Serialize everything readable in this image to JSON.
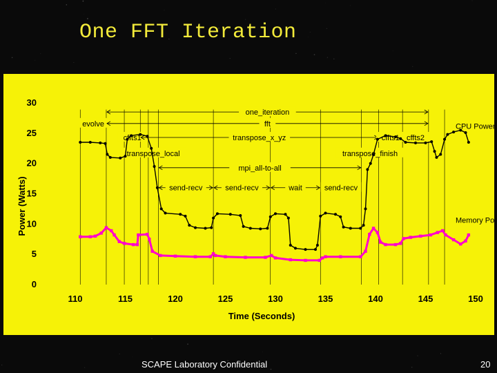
{
  "slide": {
    "title": "One FFT Iteration",
    "footer": "SCAPE Laboratory Confidential",
    "page_number": "20"
  },
  "colors": {
    "slide_background": "#0a0a0a",
    "title": "#f2ea3a",
    "panel": "#f6f207",
    "cpu_series": "#000000",
    "memory_series": "#ff00cc"
  },
  "chart_data": {
    "type": "line",
    "title": "",
    "xlabel": "Time (Seconds)",
    "ylabel": "Power (Watts)",
    "xlim": [
      110,
      150
    ],
    "ylim": [
      0,
      30
    ],
    "x_ticks": [
      "110",
      "115",
      "120",
      "125",
      "130",
      "135",
      "140",
      "145",
      "150"
    ],
    "y_ticks": [
      "0",
      "5",
      "10",
      "15",
      "20",
      "25",
      "30"
    ],
    "grid": false,
    "series": [
      {
        "name": "CPU Power",
        "points": [
          [
            110.5,
            23.5
          ],
          [
            111.5,
            23.5
          ],
          [
            112.5,
            23.4
          ],
          [
            113.0,
            23.3
          ],
          [
            113.2,
            21.5
          ],
          [
            113.5,
            21.0
          ],
          [
            114.5,
            20.9
          ],
          [
            115.0,
            21.2
          ],
          [
            115.2,
            24.0
          ],
          [
            115.6,
            24.6
          ],
          [
            116.5,
            24.8
          ],
          [
            117.2,
            24.5
          ],
          [
            117.6,
            22.5
          ],
          [
            117.9,
            19.5
          ],
          [
            118.2,
            16.0
          ],
          [
            118.6,
            12.5
          ],
          [
            119.0,
            11.8
          ],
          [
            120.5,
            11.6
          ],
          [
            121.0,
            11.3
          ],
          [
            121.4,
            9.8
          ],
          [
            122.0,
            9.4
          ],
          [
            123.0,
            9.3
          ],
          [
            123.6,
            9.4
          ],
          [
            123.8,
            11.0
          ],
          [
            124.2,
            11.7
          ],
          [
            125.5,
            11.6
          ],
          [
            126.5,
            11.4
          ],
          [
            126.8,
            9.6
          ],
          [
            127.5,
            9.3
          ],
          [
            128.5,
            9.2
          ],
          [
            129.2,
            9.3
          ],
          [
            129.5,
            11.2
          ],
          [
            130.0,
            11.7
          ],
          [
            131.0,
            11.6
          ],
          [
            131.3,
            11.0
          ],
          [
            131.5,
            6.5
          ],
          [
            132.0,
            6.0
          ],
          [
            133.0,
            5.8
          ],
          [
            134.0,
            5.8
          ],
          [
            134.2,
            6.5
          ],
          [
            134.5,
            11.3
          ],
          [
            135.0,
            11.8
          ],
          [
            136.0,
            11.6
          ],
          [
            136.5,
            11.2
          ],
          [
            136.8,
            9.5
          ],
          [
            137.5,
            9.3
          ],
          [
            138.5,
            9.3
          ],
          [
            138.8,
            9.8
          ],
          [
            139.0,
            12.5
          ],
          [
            139.2,
            19.0
          ],
          [
            139.5,
            20.0
          ],
          [
            139.8,
            21.5
          ],
          [
            140.2,
            24.0
          ],
          [
            141.0,
            24.6
          ],
          [
            142.0,
            24.4
          ],
          [
            142.5,
            24.1
          ],
          [
            143.0,
            23.5
          ],
          [
            144.0,
            23.4
          ],
          [
            145.0,
            23.4
          ],
          [
            145.6,
            23.6
          ],
          [
            145.9,
            22.0
          ],
          [
            146.1,
            21.0
          ],
          [
            146.5,
            21.5
          ],
          [
            146.9,
            24.0
          ],
          [
            147.2,
            24.8
          ],
          [
            147.8,
            25.2
          ],
          [
            148.5,
            25.5
          ],
          [
            149.0,
            25.1
          ],
          [
            149.3,
            23.5
          ]
        ]
      },
      {
        "name": "Memory Power",
        "points": [
          [
            110.5,
            7.9
          ],
          [
            111.5,
            7.9
          ],
          [
            112.0,
            8.0
          ],
          [
            112.6,
            8.5
          ],
          [
            113.1,
            9.4
          ],
          [
            113.6,
            8.9
          ],
          [
            113.9,
            8.2
          ],
          [
            114.4,
            7.1
          ],
          [
            114.9,
            6.8
          ],
          [
            115.8,
            6.6
          ],
          [
            116.2,
            6.6
          ],
          [
            116.3,
            8.2
          ],
          [
            117.2,
            8.3
          ],
          [
            117.4,
            7.5
          ],
          [
            117.7,
            5.5
          ],
          [
            118.5,
            4.8
          ],
          [
            120.0,
            4.7
          ],
          [
            122.0,
            4.6
          ],
          [
            123.5,
            4.6
          ],
          [
            123.8,
            5.1
          ],
          [
            124.0,
            4.8
          ],
          [
            125.0,
            4.6
          ],
          [
            127.0,
            4.5
          ],
          [
            129.0,
            4.5
          ],
          [
            129.6,
            4.8
          ],
          [
            130.0,
            4.4
          ],
          [
            131.5,
            4.1
          ],
          [
            133.0,
            4.0
          ],
          [
            134.4,
            4.0
          ],
          [
            134.7,
            4.4
          ],
          [
            135.0,
            4.6
          ],
          [
            136.5,
            4.6
          ],
          [
            138.5,
            4.6
          ],
          [
            139.0,
            5.5
          ],
          [
            139.4,
            8.3
          ],
          [
            139.8,
            9.3
          ],
          [
            140.2,
            8.6
          ],
          [
            140.5,
            7.0
          ],
          [
            141.0,
            6.6
          ],
          [
            142.0,
            6.6
          ],
          [
            142.5,
            6.8
          ],
          [
            142.8,
            7.6
          ],
          [
            143.5,
            7.8
          ],
          [
            144.5,
            8.0
          ],
          [
            145.5,
            8.2
          ],
          [
            146.2,
            8.6
          ],
          [
            146.7,
            8.9
          ],
          [
            147.0,
            8.2
          ],
          [
            147.8,
            7.4
          ],
          [
            148.5,
            6.7
          ],
          [
            149.0,
            7.2
          ],
          [
            149.3,
            8.2
          ]
        ]
      }
    ],
    "phase_markers": [
      110.5,
      113.1,
      114.9,
      116.5,
      117.3,
      118.3,
      123.8,
      129.5,
      134.5,
      138.6,
      140.3,
      142.7,
      145.3,
      146.9
    ],
    "annotations": [
      {
        "label": "one_iteration",
        "x1": 113.1,
        "x2": 145.3,
        "y": 28.5
      },
      {
        "label": "evolve",
        "x1": 110.5,
        "x2": 113.1,
        "y": 26.6
      },
      {
        "label": "fft",
        "x1": 113.1,
        "x2": 145.3,
        "y": 26.6
      },
      {
        "label": "cffts1",
        "x1": 114.9,
        "x2": 116.5,
        "y": 24.3
      },
      {
        "label": "transpose_x_yz",
        "x1": 116.5,
        "x2": 140.3,
        "y": 24.3
      },
      {
        "label": "cffts1",
        "x1": 140.3,
        "x2": 142.7,
        "y": 24.3
      },
      {
        "label": "cffts2",
        "x1": 142.7,
        "x2": 145.3,
        "y": 24.3
      },
      {
        "label": "transpose_local",
        "x1": 117.3,
        "x2": 118.3,
        "y": 21.7
      },
      {
        "label": "transpose_finish",
        "x1": 138.6,
        "x2": 140.3,
        "y": 21.7
      },
      {
        "label": "mpi_all-to-all",
        "x1": 118.3,
        "x2": 138.6,
        "y": 19.3
      },
      {
        "label": "send-recv",
        "x1": 118.3,
        "x2": 123.8,
        "y": 16.0
      },
      {
        "label": "send-recv",
        "x1": 123.8,
        "x2": 129.5,
        "y": 16.0
      },
      {
        "label": "wait",
        "x1": 129.5,
        "x2": 134.5,
        "y": 16.0
      },
      {
        "label": "send-recv",
        "x1": 134.5,
        "x2": 138.6,
        "y": 16.0
      }
    ],
    "series_labels": [
      {
        "text": "CPU Power",
        "x": 148.0,
        "y": 25.7
      },
      {
        "text": "Memory Power",
        "x": 148.0,
        "y": 10.2
      }
    ]
  }
}
